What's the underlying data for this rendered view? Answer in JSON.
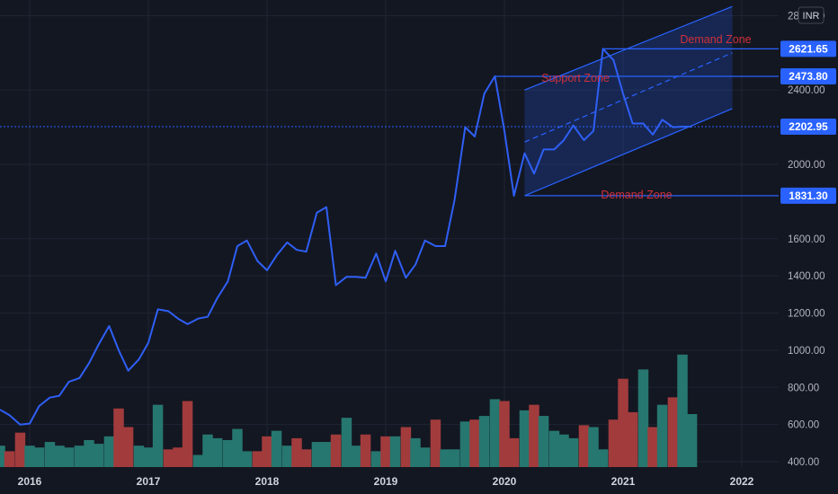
{
  "chart_data": {
    "type": "line",
    "currency": "INR",
    "x_ticks": [
      "2016",
      "2017",
      "2018",
      "2019",
      "2020",
      "2021",
      "2022"
    ],
    "y_ticks": [
      "2800.00",
      "2400.00",
      "2000.00",
      "1600.00",
      "1400.00",
      "1200.00",
      "1000.00",
      "800.00",
      "600.00",
      "400.00"
    ],
    "ylim": [
      400,
      2850
    ],
    "grid": true,
    "series": [
      {
        "x": [
          2015.75,
          2015.83,
          2015.92,
          2016.0,
          2016.08,
          2016.17,
          2016.25,
          2016.33,
          2016.42,
          2016.5,
          2016.58,
          2016.67,
          2016.75,
          2016.83,
          2016.92,
          2017.0,
          2017.08,
          2017.17,
          2017.25,
          2017.33,
          2017.42,
          2017.5,
          2017.58,
          2017.67,
          2017.75,
          2017.83,
          2017.92,
          2018.0,
          2018.08,
          2018.17,
          2018.25,
          2018.33,
          2018.42,
          2018.5,
          2018.58,
          2018.67,
          2018.75,
          2018.83,
          2018.92,
          2019.0,
          2019.08,
          2019.17,
          2019.25,
          2019.33,
          2019.42,
          2019.5,
          2019.58,
          2019.67,
          2019.75,
          2019.83,
          2019.92,
          2020.0,
          2020.08,
          2020.17,
          2020.25,
          2020.33,
          2020.42,
          2020.5,
          2020.58,
          2020.67,
          2020.75,
          2020.83,
          2020.92,
          2021.0,
          2021.08,
          2021.17,
          2021.25,
          2021.33,
          2021.42,
          2021.5,
          2021.58
        ],
        "y": [
          680,
          650,
          600,
          605,
          700,
          745,
          755,
          830,
          850,
          930,
          1030,
          1130,
          1000,
          890,
          950,
          1040,
          1220,
          1210,
          1170,
          1140,
          1170,
          1180,
          1280,
          1370,
          1560,
          1590,
          1480,
          1430,
          1510,
          1580,
          1540,
          1530,
          1740,
          1770,
          1350,
          1395,
          1395,
          1390,
          1520,
          1370,
          1535,
          1390,
          1460,
          1590,
          1560,
          1560,
          1810,
          2200,
          2150,
          2380,
          2474,
          2180,
          1831,
          2060,
          1950,
          2080,
          2080,
          2130,
          2210,
          2130,
          2180,
          2622,
          2560,
          2380,
          2220,
          2220,
          2160,
          2240,
          2200,
          2203,
          2203
        ],
        "color": "#2f5ff5"
      }
    ],
    "volume": {
      "values": [
        520,
        490,
        590,
        520,
        510,
        540,
        520,
        510,
        520,
        550,
        530,
        570,
        720,
        620,
        520,
        510,
        740,
        500,
        510,
        760,
        470,
        580,
        560,
        550,
        610,
        490,
        490,
        570,
        600,
        520,
        560,
        500,
        540,
        540,
        580,
        670,
        520,
        580,
        490,
        570,
        570,
        620,
        560,
        510,
        660,
        500,
        500,
        650,
        660,
        680,
        770,
        760,
        560,
        710,
        740,
        680,
        600,
        580,
        560,
        630,
        620,
        500,
        660,
        880,
        700,
        930,
        620,
        740,
        780,
        1010,
        690
      ],
      "up_color": "#26776f",
      "down_color": "#a23b3c"
    },
    "channel": {
      "upper": {
        "x": [
          2020.17,
          2021.92
        ],
        "y": [
          2400,
          2850
        ]
      },
      "middle": {
        "x": [
          2020.17,
          2021.92
        ],
        "y": [
          2120,
          2600
        ]
      },
      "lower": {
        "x": [
          2020.17,
          2021.92
        ],
        "y": [
          1831,
          2300
        ]
      }
    },
    "levels": [
      {
        "value": "2621.65",
        "color": "#2962ff"
      },
      {
        "value": "2473.80",
        "color": "#2962ff"
      },
      {
        "value": "2202.95",
        "color": "#2962ff"
      },
      {
        "value": "1831.30",
        "color": "#2962ff"
      }
    ],
    "annotations": [
      "Demand Zone",
      "Support Zone",
      "Demand Zone"
    ]
  }
}
